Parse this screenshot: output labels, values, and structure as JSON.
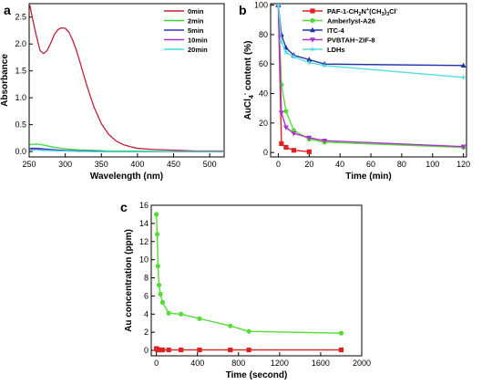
{
  "chart_data": [
    {
      "panel": "a",
      "type": "line",
      "xlabel": "Wavelength (nm)",
      "ylabel": "Absorbance",
      "xlim": [
        250,
        520
      ],
      "ylim": [
        -0.1,
        2.75
      ],
      "xticks": [
        250,
        300,
        350,
        400,
        450,
        500
      ],
      "yticks": [
        0.0,
        0.5,
        1.0,
        1.5,
        2.0,
        2.5
      ],
      "legend_position": "top-right",
      "series": [
        {
          "name": "0min",
          "color": "#c0203a",
          "x": [
            251,
            255,
            260,
            265,
            270,
            275,
            280,
            285,
            290,
            295,
            300,
            305,
            310,
            315,
            320,
            325,
            330,
            340,
            350,
            360,
            370,
            380,
            390,
            400,
            420,
            440,
            460,
            480,
            500,
            520
          ],
          "y": [
            2.72,
            2.45,
            2.15,
            1.88,
            1.82,
            1.88,
            2.02,
            2.18,
            2.27,
            2.3,
            2.29,
            2.22,
            2.08,
            1.9,
            1.68,
            1.45,
            1.22,
            0.82,
            0.52,
            0.32,
            0.2,
            0.13,
            0.09,
            0.06,
            0.04,
            0.03,
            0.02,
            0.01,
            0.01,
            0.01
          ]
        },
        {
          "name": "2min",
          "color": "#33dd33",
          "x": [
            251,
            260,
            270,
            280,
            290,
            300,
            320,
            340,
            360,
            400,
            450,
            520
          ],
          "y": [
            0.13,
            0.14,
            0.12,
            0.09,
            0.07,
            0.05,
            0.03,
            0.02,
            0.01,
            0.01,
            0.0,
            0.0
          ]
        },
        {
          "name": "5min",
          "color": "#3333cc",
          "x": [
            251,
            260,
            270,
            280,
            290,
            300,
            320,
            340,
            360,
            400,
            450,
            520
          ],
          "y": [
            0.06,
            0.06,
            0.05,
            0.04,
            0.03,
            0.02,
            0.01,
            0.01,
            0.0,
            0.0,
            0.0,
            0.0
          ]
        },
        {
          "name": "10min",
          "color": "#9933cc",
          "x": [
            251,
            260,
            270,
            280,
            290,
            300,
            320,
            340,
            360,
            400,
            450,
            520
          ],
          "y": [
            0.04,
            0.04,
            0.03,
            0.02,
            0.02,
            0.01,
            0.01,
            0.0,
            0.0,
            0.0,
            0.0,
            0.0
          ]
        },
        {
          "name": "20min",
          "color": "#44dddd",
          "x": [
            251,
            260,
            270,
            280,
            290,
            300,
            320,
            340,
            360,
            400,
            450,
            520
          ],
          "y": [
            0.03,
            0.03,
            0.02,
            0.02,
            0.01,
            0.01,
            0.0,
            0.0,
            0.0,
            0.0,
            0.0,
            0.0
          ]
        }
      ]
    },
    {
      "panel": "b",
      "type": "line",
      "xlabel": "Time (min)",
      "ylabel_parts": {
        "main": "AuCl",
        "sub": "4",
        "sup": "-",
        "rest": " content (%)"
      },
      "xlim": [
        -5,
        122
      ],
      "ylim": [
        -3,
        101
      ],
      "xticks": [
        0,
        20,
        40,
        60,
        80,
        100,
        120
      ],
      "yticks": [
        0,
        20,
        40,
        60,
        80,
        100
      ],
      "legend_position": "top-right",
      "series": [
        {
          "name_parts": {
            "pre": "PAF-1-CH",
            "s1": "2",
            "mid": "N",
            "p1": "+",
            "mid2": "(CH",
            "s2": "3",
            "mid3": ")",
            "s3": "3",
            "mid4": "Cl",
            "p2": "-"
          },
          "color": "#dd2222",
          "marker": "square",
          "x": [
            0,
            2,
            5,
            10,
            20
          ],
          "y": [
            100,
            6,
            3.5,
            1.5,
            0.5
          ]
        },
        {
          "name": "Amberlyst-A26",
          "color": "#55dd33",
          "marker": "circle",
          "x": [
            0,
            2,
            5,
            10,
            20,
            30,
            120
          ],
          "y": [
            100,
            46,
            28,
            15,
            9,
            7,
            3.5
          ]
        },
        {
          "name": "ITC-4",
          "color": "#2233aa",
          "marker": "triangle-up",
          "x": [
            0,
            2,
            5,
            10,
            20,
            30,
            120
          ],
          "y": [
            100,
            80,
            71,
            66,
            63,
            60,
            59
          ]
        },
        {
          "name": "PVBTAH~ZIF-8",
          "color": "#aa33cc",
          "marker": "triangle-down",
          "x": [
            0,
            2,
            5,
            10,
            20,
            30,
            120
          ],
          "y": [
            100,
            27,
            17,
            13,
            10,
            8,
            4
          ]
        },
        {
          "name": "LDHs",
          "color": "#55dddd",
          "marker": "star",
          "x": [
            0,
            2,
            5,
            10,
            20,
            30,
            120
          ],
          "y": [
            100,
            75,
            68,
            65,
            61,
            59,
            51
          ]
        }
      ]
    },
    {
      "panel": "c",
      "type": "line",
      "xlabel": "Time (second)",
      "ylabel": "Au concentration (ppm)",
      "xlim": [
        -50,
        2000
      ],
      "ylim": [
        -0.6,
        16
      ],
      "xticks": [
        0,
        400,
        800,
        1200,
        1600,
        2000
      ],
      "yticks": [
        0,
        2,
        4,
        6,
        8,
        10,
        12,
        14,
        16
      ],
      "series": [
        {
          "color": "#55dd33",
          "marker": "circle",
          "x": [
            0,
            8,
            15,
            25,
            40,
            60,
            120,
            240,
            420,
            720,
            900,
            1800
          ],
          "y": [
            15,
            12.8,
            9.3,
            7.2,
            6.2,
            5.3,
            4.1,
            4.0,
            3.5,
            2.7,
            2.1,
            1.9
          ]
        },
        {
          "color": "#dd2222",
          "marker": "square",
          "x": [
            0,
            8,
            15,
            25,
            40,
            60,
            120,
            240,
            420,
            720,
            900,
            1800
          ],
          "y": [
            0.2,
            0.1,
            0.05,
            0.05,
            0.05,
            0.05,
            0.05,
            0.05,
            0.05,
            0.05,
            0.05,
            0.05
          ]
        }
      ]
    }
  ]
}
